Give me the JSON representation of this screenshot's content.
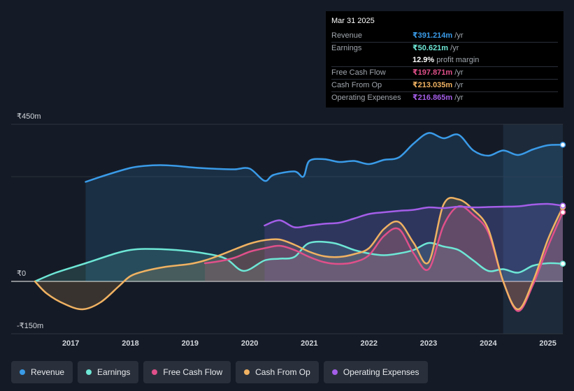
{
  "tooltip": {
    "date": "Mar 31 2025",
    "rows": [
      {
        "label": "Revenue",
        "value": "₹391.214m",
        "unit": " /yr",
        "color": "#3a9be8"
      },
      {
        "label": "Earnings",
        "value": "₹50.621m",
        "unit": " /yr",
        "color": "#6ee7d6"
      },
      {
        "label": "",
        "value": "12.9%",
        "unit": " profit margin",
        "color": "#ffffff"
      },
      {
        "label": "Free Cash Flow",
        "value": "₹197.871m",
        "unit": " /yr",
        "color": "#e0508a"
      },
      {
        "label": "Cash From Op",
        "value": "₹213.035m",
        "unit": " /yr",
        "color": "#f0b262"
      },
      {
        "label": "Operating Expenses",
        "value": "₹216.865m",
        "unit": " /yr",
        "color": "#a45ee8"
      }
    ]
  },
  "legend": [
    {
      "label": "Revenue",
      "color": "#3a9be8"
    },
    {
      "label": "Earnings",
      "color": "#6ee7d6"
    },
    {
      "label": "Free Cash Flow",
      "color": "#e0508a"
    },
    {
      "label": "Cash From Op",
      "color": "#f0b262"
    },
    {
      "label": "Operating Expenses",
      "color": "#a45ee8"
    }
  ],
  "chart_data": {
    "type": "area",
    "y_axis_labels": [
      "₹450m",
      "₹0",
      "-₹150m"
    ],
    "ylim": [
      -150,
      450
    ],
    "xlim": [
      2016.3,
      2025.25
    ],
    "x_ticks": [
      "2017",
      "2018",
      "2019",
      "2020",
      "2021",
      "2022",
      "2023",
      "2024",
      "2025"
    ],
    "highlight_start": 2024.25,
    "series": [
      {
        "name": "Revenue",
        "color": "#3a9be8",
        "points": [
          [
            2017.25,
            285
          ],
          [
            2017.6,
            305
          ],
          [
            2018.0,
            325
          ],
          [
            2018.25,
            331
          ],
          [
            2018.5,
            333
          ],
          [
            2018.75,
            331
          ],
          [
            2019.0,
            327
          ],
          [
            2019.25,
            324
          ],
          [
            2019.5,
            322
          ],
          [
            2019.75,
            321
          ],
          [
            2020.0,
            323
          ],
          [
            2020.25,
            288
          ],
          [
            2020.4,
            305
          ],
          [
            2020.75,
            315
          ],
          [
            2020.9,
            300
          ],
          [
            2021.0,
            345
          ],
          [
            2021.25,
            350
          ],
          [
            2021.5,
            342
          ],
          [
            2021.75,
            345
          ],
          [
            2022.0,
            336
          ],
          [
            2022.25,
            348
          ],
          [
            2022.5,
            355
          ],
          [
            2022.75,
            395
          ],
          [
            2023.0,
            425
          ],
          [
            2023.25,
            410
          ],
          [
            2023.5,
            420
          ],
          [
            2023.75,
            375
          ],
          [
            2024.0,
            360
          ],
          [
            2024.25,
            375
          ],
          [
            2024.5,
            362
          ],
          [
            2024.75,
            378
          ],
          [
            2025.0,
            390
          ],
          [
            2025.25,
            391.2
          ]
        ]
      },
      {
        "name": "Earnings",
        "color": "#6ee7d6",
        "points": [
          [
            2016.4,
            0
          ],
          [
            2016.75,
            25
          ],
          [
            2017.25,
            52
          ],
          [
            2017.75,
            80
          ],
          [
            2018.0,
            90
          ],
          [
            2018.25,
            93
          ],
          [
            2018.75,
            90
          ],
          [
            2019.25,
            80
          ],
          [
            2019.6,
            65
          ],
          [
            2019.9,
            30
          ],
          [
            2020.25,
            60
          ],
          [
            2020.5,
            65
          ],
          [
            2020.75,
            70
          ],
          [
            2021.0,
            110
          ],
          [
            2021.4,
            110
          ],
          [
            2021.75,
            90
          ],
          [
            2022.0,
            80
          ],
          [
            2022.25,
            75
          ],
          [
            2022.5,
            80
          ],
          [
            2022.75,
            90
          ],
          [
            2023.0,
            110
          ],
          [
            2023.25,
            100
          ],
          [
            2023.5,
            90
          ],
          [
            2023.75,
            60
          ],
          [
            2024.0,
            30
          ],
          [
            2024.25,
            35
          ],
          [
            2024.5,
            25
          ],
          [
            2024.75,
            45
          ],
          [
            2025.0,
            52
          ],
          [
            2025.25,
            50.6
          ]
        ]
      },
      {
        "name": "Free Cash Flow",
        "color": "#e0508a",
        "points": [
          [
            2019.25,
            52
          ],
          [
            2019.5,
            58
          ],
          [
            2019.75,
            68
          ],
          [
            2020.0,
            85
          ],
          [
            2020.25,
            95
          ],
          [
            2020.5,
            102
          ],
          [
            2020.75,
            90
          ],
          [
            2021.0,
            70
          ],
          [
            2021.25,
            55
          ],
          [
            2021.5,
            50
          ],
          [
            2021.75,
            55
          ],
          [
            2022.0,
            75
          ],
          [
            2022.25,
            130
          ],
          [
            2022.5,
            150
          ],
          [
            2022.75,
            80
          ],
          [
            2023.0,
            35
          ],
          [
            2023.25,
            160
          ],
          [
            2023.5,
            215
          ],
          [
            2023.75,
            190
          ],
          [
            2024.0,
            140
          ],
          [
            2024.25,
            0
          ],
          [
            2024.5,
            -85
          ],
          [
            2024.75,
            -10
          ],
          [
            2025.0,
            100
          ],
          [
            2025.25,
            197.9
          ]
        ]
      },
      {
        "name": "Cash From Op",
        "color": "#f0b262",
        "points": [
          [
            2016.4,
            0
          ],
          [
            2016.6,
            -35
          ],
          [
            2016.9,
            -65
          ],
          [
            2017.2,
            -80
          ],
          [
            2017.5,
            -60
          ],
          [
            2017.8,
            -15
          ],
          [
            2018.0,
            15
          ],
          [
            2018.25,
            30
          ],
          [
            2018.6,
            42
          ],
          [
            2019.0,
            50
          ],
          [
            2019.25,
            60
          ],
          [
            2019.5,
            75
          ],
          [
            2019.75,
            92
          ],
          [
            2020.0,
            108
          ],
          [
            2020.25,
            118
          ],
          [
            2020.5,
            120
          ],
          [
            2020.75,
            105
          ],
          [
            2021.0,
            85
          ],
          [
            2021.25,
            72
          ],
          [
            2021.5,
            70
          ],
          [
            2021.75,
            78
          ],
          [
            2022.0,
            95
          ],
          [
            2022.25,
            150
          ],
          [
            2022.5,
            170
          ],
          [
            2022.75,
            110
          ],
          [
            2023.0,
            55
          ],
          [
            2023.25,
            220
          ],
          [
            2023.5,
            235
          ],
          [
            2023.75,
            205
          ],
          [
            2024.0,
            150
          ],
          [
            2024.25,
            0
          ],
          [
            2024.5,
            -80
          ],
          [
            2024.75,
            0
          ],
          [
            2025.0,
            120
          ],
          [
            2025.25,
            213
          ]
        ]
      },
      {
        "name": "Operating Expenses",
        "color": "#a45ee8",
        "points": [
          [
            2020.25,
            160
          ],
          [
            2020.5,
            175
          ],
          [
            2020.75,
            155
          ],
          [
            2021.0,
            160
          ],
          [
            2021.25,
            165
          ],
          [
            2021.5,
            168
          ],
          [
            2021.75,
            180
          ],
          [
            2022.0,
            193
          ],
          [
            2022.25,
            198
          ],
          [
            2022.5,
            202
          ],
          [
            2022.75,
            205
          ],
          [
            2023.0,
            212
          ],
          [
            2023.25,
            210
          ],
          [
            2023.5,
            214
          ],
          [
            2023.75,
            212
          ],
          [
            2024.0,
            213
          ],
          [
            2024.25,
            214
          ],
          [
            2024.5,
            215
          ],
          [
            2024.75,
            220
          ],
          [
            2025.0,
            222
          ],
          [
            2025.25,
            216.9
          ]
        ]
      }
    ]
  }
}
